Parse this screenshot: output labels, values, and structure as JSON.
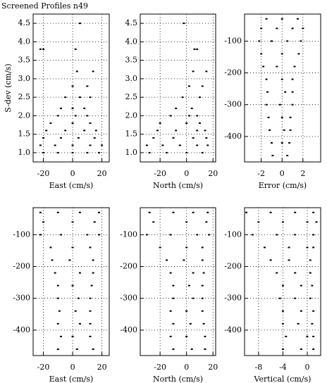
{
  "title": "Screened Profiles n49",
  "chart_data": [
    {
      "type": "scatter",
      "xlabel": "East (cm/s)",
      "ylabel": "S-dev (cm/s)",
      "x": [
        -20,
        -10,
        0,
        10,
        18,
        -22,
        -12,
        0,
        12,
        20,
        -20,
        -8,
        4,
        15,
        -18,
        -5,
        8,
        16,
        -15,
        0,
        12,
        -10,
        2,
        10,
        -8,
        0,
        8,
        -5,
        5,
        12,
        0,
        10,
        3,
        14,
        -22,
        -20,
        2,
        5
      ],
      "y": [
        1.0,
        1.0,
        1.0,
        1.0,
        1.0,
        1.2,
        1.2,
        1.2,
        1.2,
        1.2,
        1.4,
        1.4,
        1.4,
        1.4,
        1.6,
        1.6,
        1.6,
        1.6,
        1.8,
        1.8,
        1.8,
        2.0,
        2.0,
        2.0,
        2.2,
        2.2,
        2.2,
        2.5,
        2.5,
        2.5,
        2.8,
        2.8,
        3.2,
        3.2,
        3.8,
        3.8,
        3.8,
        4.5
      ],
      "xlim": [
        -27,
        25
      ],
      "ylim": [
        0.75,
        4.75
      ],
      "xticks": [
        -20,
        0,
        20
      ],
      "yticks": [
        {
          "value": 1,
          "label": "1.0"
        },
        1.5,
        {
          "value": 2,
          "label": "2.0"
        },
        2.5,
        {
          "value": 3,
          "label": "3.0"
        },
        3.5,
        {
          "value": 4,
          "label": "4.0"
        },
        4.5
      ],
      "grid": true
    },
    {
      "type": "scatter",
      "xlabel": "North (cm/s)",
      "x": [
        -28,
        -15,
        0,
        12,
        -30,
        -18,
        -5,
        8,
        16,
        -25,
        -10,
        5,
        15,
        -22,
        -8,
        8,
        14,
        -20,
        0,
        10,
        -12,
        2,
        8,
        -8,
        4,
        -3,
        10,
        2,
        12,
        5,
        15,
        6,
        8,
        -2
      ],
      "y": [
        1.0,
        1.0,
        1.0,
        1.0,
        1.2,
        1.2,
        1.2,
        1.2,
        1.2,
        1.4,
        1.4,
        1.4,
        1.4,
        1.6,
        1.6,
        1.6,
        1.6,
        1.8,
        1.8,
        1.8,
        2.0,
        2.0,
        2.0,
        2.2,
        2.2,
        2.5,
        2.5,
        2.8,
        2.8,
        3.2,
        3.2,
        3.8,
        3.8,
        4.5
      ],
      "xlim": [
        -35,
        22
      ],
      "ylim": [
        0.75,
        4.75
      ],
      "xticks": [
        -20,
        0,
        20
      ],
      "yticks": [
        {
          "value": 1,
          "label": "1.0"
        },
        1.5,
        {
          "value": 2,
          "label": "2.0"
        },
        2.5,
        {
          "value": 3,
          "label": "3.0"
        },
        3.5,
        {
          "value": 4,
          "label": "4.0"
        },
        4.5
      ],
      "grid": true
    },
    {
      "type": "scatter",
      "xlabel": "Error (cm/s)",
      "x": [
        -1.5,
        0,
        1.5,
        -2,
        -0.5,
        1,
        2,
        -2.2,
        -1,
        0.5,
        1.8,
        -2,
        0,
        1.6,
        -1.8,
        -0.5,
        1.2,
        -1.5,
        0,
        1,
        -1.4,
        0.3,
        1,
        -1.5,
        -0.2,
        1,
        -1.3,
        0,
        0.8,
        -1.2,
        0.2,
        0.8,
        -1,
        0,
        0.7,
        -0.9,
        0.5
      ],
      "y": [
        -30,
        -30,
        -30,
        -60,
        -60,
        -60,
        -60,
        -100,
        -100,
        -100,
        -100,
        -140,
        -140,
        -140,
        -180,
        -180,
        -180,
        -220,
        -220,
        -220,
        -260,
        -260,
        -260,
        -300,
        -300,
        -300,
        -340,
        -340,
        -340,
        -380,
        -380,
        -380,
        -420,
        -420,
        -420,
        -460,
        -460
      ],
      "xlim": [
        -3.6,
        3.7
      ],
      "ylim": [
        -480,
        -15
      ],
      "xticks": [
        -2,
        0,
        2
      ],
      "yticks": [
        -100,
        -200,
        -300,
        -400
      ],
      "grid": true
    },
    {
      "type": "scatter",
      "xlabel": "East (cm/s)",
      "x": [
        -22,
        -10,
        5,
        18,
        -20,
        0,
        15,
        -22,
        -8,
        10,
        18,
        -15,
        0,
        12,
        -14,
        -2,
        14,
        -12,
        5,
        14,
        -10,
        0,
        13,
        -10,
        4,
        12,
        -9,
        2,
        12,
        -10,
        5,
        12,
        -8,
        0,
        12,
        -10,
        3,
        14
      ],
      "y": [
        -30,
        -30,
        -30,
        -30,
        -60,
        -60,
        -60,
        -100,
        -100,
        -100,
        -100,
        -140,
        -140,
        -140,
        -180,
        -180,
        -180,
        -220,
        -220,
        -220,
        -260,
        -260,
        -260,
        -300,
        -300,
        -300,
        -340,
        -340,
        -340,
        -380,
        -380,
        -380,
        -420,
        -420,
        -420,
        -460,
        -460,
        -460
      ],
      "xlim": [
        -27,
        25
      ],
      "ylim": [
        -480,
        -15
      ],
      "xticks": [
        -20,
        0,
        20
      ],
      "yticks": [
        -100,
        -200,
        -300,
        -400
      ],
      "grid": true
    },
    {
      "type": "scatter",
      "xlabel": "North (cm/s)",
      "x": [
        -28,
        -10,
        5,
        16,
        -25,
        0,
        15,
        -30,
        -12,
        8,
        17,
        -20,
        0,
        12,
        -15,
        -2,
        12,
        -12,
        5,
        13,
        -10,
        2,
        12,
        -10,
        5,
        12,
        -12,
        0,
        12,
        -10,
        3,
        13,
        -12,
        0,
        14,
        -10,
        4,
        14
      ],
      "y": [
        -30,
        -30,
        -30,
        -30,
        -60,
        -60,
        -60,
        -100,
        -100,
        -100,
        -100,
        -140,
        -140,
        -140,
        -180,
        -180,
        -180,
        -220,
        -220,
        -220,
        -260,
        -260,
        -260,
        -300,
        -300,
        -300,
        -340,
        -340,
        -340,
        -380,
        -380,
        -380,
        -420,
        -420,
        -420,
        -460,
        -460,
        -460
      ],
      "xlim": [
        -35,
        22
      ],
      "ylim": [
        -480,
        -15
      ],
      "xticks": [
        -20,
        0,
        20
      ],
      "yticks": [
        -100,
        -200,
        -300,
        -400
      ],
      "grid": true
    },
    {
      "type": "scatter",
      "xlabel": "Vertical (cm/s)",
      "x": [
        -10,
        -6,
        -2,
        1,
        -8,
        -4,
        0,
        1.5,
        -9,
        -5,
        -2,
        1,
        -7,
        -3,
        0,
        1,
        -6,
        -3,
        0.5,
        -5,
        -2,
        0.5,
        -4,
        -1,
        0.8,
        -4.5,
        -2,
        0.5,
        -4,
        -1,
        1,
        -4,
        -1.5,
        0.8,
        -3.5,
        0,
        1,
        -4,
        -1,
        1
      ],
      "y": [
        -30,
        -30,
        -30,
        -30,
        -60,
        -60,
        -60,
        -60,
        -100,
        -100,
        -100,
        -100,
        -140,
        -140,
        -140,
        -140,
        -180,
        -180,
        -180,
        -220,
        -220,
        -220,
        -260,
        -260,
        -260,
        -300,
        -300,
        -300,
        -340,
        -340,
        -340,
        -380,
        -380,
        -380,
        -420,
        -420,
        -420,
        -460,
        -460,
        -460
      ],
      "xlim": [
        -10.3,
        2.2
      ],
      "ylim": [
        -480,
        -15
      ],
      "xticks": [
        -8,
        -4,
        0
      ],
      "yticks": [
        -100,
        -200,
        -300,
        -400
      ],
      "grid": true
    }
  ]
}
